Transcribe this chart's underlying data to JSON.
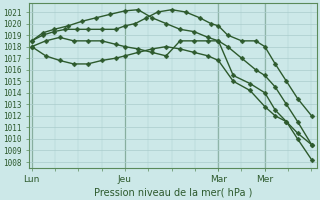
{
  "bg_color": "#cce8e8",
  "grid_color": "#aacccc",
  "line_color": "#2d5a2d",
  "title": "Pression niveau de la mer( hPa )",
  "ylabel_values": [
    1008,
    1009,
    1010,
    1011,
    1012,
    1013,
    1014,
    1015,
    1016,
    1017,
    1018,
    1019,
    1020,
    1021
  ],
  "ylim": [
    1007.5,
    1021.8
  ],
  "xtick_labels": [
    "Lun",
    "Jeu",
    "Mar",
    "Mer"
  ],
  "vline_x": [
    0.0,
    0.333,
    0.667,
    0.833
  ],
  "series": [
    {
      "x": [
        0.0,
        0.04,
        0.08,
        0.12,
        0.16,
        0.2,
        0.25,
        0.3,
        0.333,
        0.37,
        0.41,
        0.45,
        0.5,
        0.55,
        0.6,
        0.64,
        0.667,
        0.7,
        0.75,
        0.8,
        0.833,
        0.87,
        0.91,
        0.95,
        1.0
      ],
      "y": [
        1018.5,
        1019.0,
        1019.3,
        1019.5,
        1019.5,
        1019.5,
        1019.5,
        1019.5,
        1019.8,
        1020.0,
        1020.5,
        1021.0,
        1021.2,
        1021.0,
        1020.5,
        1020.0,
        1019.8,
        1019.0,
        1018.5,
        1018.5,
        1018.0,
        1016.5,
        1015.0,
        1013.5,
        1012.0
      ]
    },
    {
      "x": [
        0.0,
        0.04,
        0.08,
        0.13,
        0.18,
        0.23,
        0.28,
        0.333,
        0.38,
        0.43,
        0.48,
        0.53,
        0.58,
        0.63,
        0.667,
        0.7,
        0.75,
        0.8,
        0.833,
        0.87,
        0.91,
        0.95,
        1.0
      ],
      "y": [
        1018.5,
        1019.2,
        1019.5,
        1019.8,
        1020.2,
        1020.5,
        1020.8,
        1021.1,
        1021.2,
        1020.5,
        1020.0,
        1019.5,
        1019.3,
        1018.8,
        1018.5,
        1018.0,
        1017.0,
        1016.0,
        1015.5,
        1014.5,
        1013.0,
        1011.5,
        1009.5
      ]
    },
    {
      "x": [
        0.0,
        0.05,
        0.1,
        0.15,
        0.2,
        0.25,
        0.3,
        0.333,
        0.38,
        0.43,
        0.48,
        0.53,
        0.58,
        0.63,
        0.667,
        0.72,
        0.78,
        0.833,
        0.87,
        0.91,
        0.95,
        1.0
      ],
      "y": [
        1018.0,
        1018.5,
        1018.8,
        1018.5,
        1018.5,
        1018.5,
        1018.2,
        1018.0,
        1017.8,
        1017.5,
        1017.2,
        1018.5,
        1018.5,
        1018.5,
        1018.5,
        1015.5,
        1014.8,
        1014.0,
        1012.5,
        1011.5,
        1010.5,
        1009.5
      ]
    },
    {
      "x": [
        0.0,
        0.05,
        0.1,
        0.15,
        0.2,
        0.25,
        0.3,
        0.333,
        0.38,
        0.43,
        0.48,
        0.53,
        0.58,
        0.63,
        0.667,
        0.72,
        0.78,
        0.833,
        0.87,
        0.91,
        0.95,
        1.0
      ],
      "y": [
        1018.0,
        1017.2,
        1016.8,
        1016.5,
        1016.5,
        1016.8,
        1017.0,
        1017.2,
        1017.5,
        1017.8,
        1018.0,
        1017.8,
        1017.5,
        1017.2,
        1016.8,
        1015.0,
        1014.2,
        1012.8,
        1012.0,
        1011.5,
        1010.0,
        1008.2
      ]
    }
  ]
}
